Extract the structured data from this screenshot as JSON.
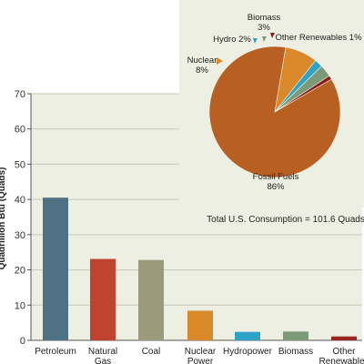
{
  "chart_data": [
    {
      "type": "bar",
      "ylabel": "Quadrillion Btu (Quads)",
      "ylim": [
        0,
        70
      ],
      "yticks": [
        0,
        10,
        20,
        30,
        40,
        50,
        60,
        70
      ],
      "categories": [
        "Petroleum",
        "Natural Gas",
        "Coal",
        "Nuclear Power",
        "Hydropower",
        "Biomass",
        "Other Renewables"
      ],
      "values": [
        40.5,
        23.1,
        22.8,
        8.4,
        2.4,
        2.5,
        1.1
      ],
      "annotation": "Total U.S. Consumption = 101.6 Quads",
      "grid": true,
      "colors": [
        "#4f7184",
        "#c0432f",
        "#9b9b7c",
        "#d9892a",
        "#2fa3c6",
        "#7c9a78",
        "#9b2722"
      ]
    },
    {
      "type": "pie",
      "slices": [
        {
          "label": "Fossil Fuels",
          "pct_text": "86%",
          "value": 86,
          "color": "#b85f22"
        },
        {
          "label": "Nuclear",
          "pct_text": "8%",
          "value": 8,
          "color": "#d9892a"
        },
        {
          "label": "Hydro",
          "pct_text": "2%",
          "value": 2,
          "color": "#2fa3c6"
        },
        {
          "label": "Biomass",
          "pct_text": "3%",
          "value": 3,
          "color": "#7c9a78"
        },
        {
          "label": "Other Renewables",
          "pct_text": "1%",
          "value": 1,
          "color": "#8a1d1a"
        }
      ]
    }
  ],
  "colors": {
    "panel_bg": "#ecefe1",
    "grid": "#c6cab4",
    "axis": "#555555"
  }
}
